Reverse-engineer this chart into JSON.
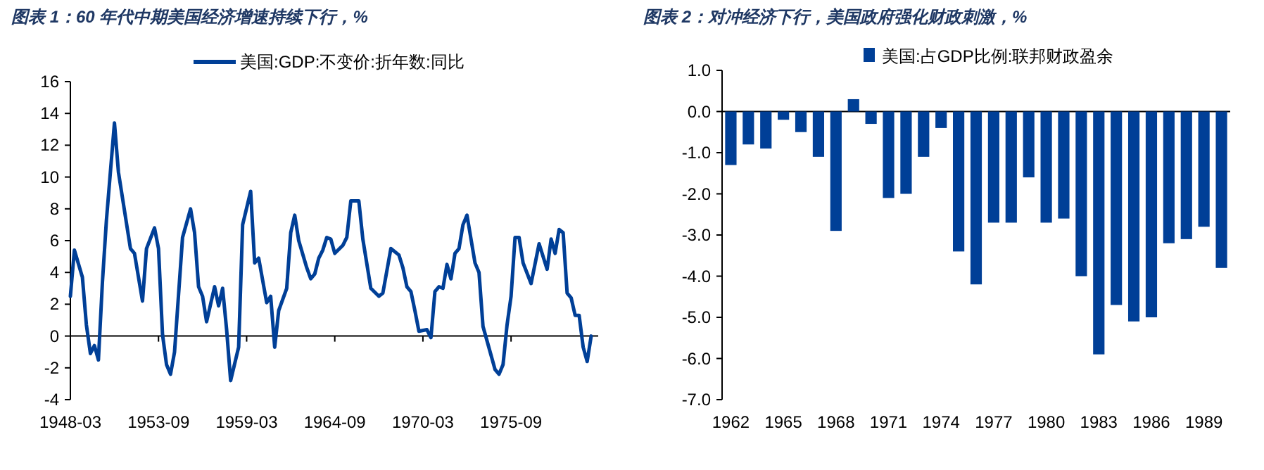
{
  "chart_data": [
    {
      "type": "line",
      "title": "图表 1：60 年代中期美国经济增速持续下行，%",
      "legend": "top",
      "grid": false,
      "ref_lines": [
        {
          "axis": "y",
          "value": 0,
          "color": "#000000"
        }
      ],
      "marker": "none",
      "line_style": "solid",
      "ylim": [
        -4,
        16
      ],
      "yticks": [
        -4,
        -2,
        0,
        2,
        4,
        6,
        8,
        10,
        12,
        14,
        16
      ],
      "xlim": [
        "1948-03",
        "1980-09"
      ],
      "xticks": [
        "1948-03",
        "1953-09",
        "1959-03",
        "1964-09",
        "1970-03",
        "1975-09"
      ],
      "x": [
        "1948-03",
        "1948-06",
        "1948-12",
        "1949-03",
        "1949-06",
        "1949-09",
        "1949-12",
        "1950-03",
        "1950-06",
        "1950-12",
        "1951-03",
        "1951-12",
        "1952-03",
        "1952-09",
        "1952-12",
        "1953-06",
        "1953-09",
        "1953-12",
        "1954-03",
        "1954-06",
        "1954-09",
        "1955-03",
        "1955-09",
        "1955-12",
        "1956-03",
        "1956-06",
        "1956-09",
        "1957-03",
        "1957-06",
        "1957-09",
        "1957-12",
        "1958-03",
        "1958-09",
        "1958-12",
        "1959-06",
        "1959-09",
        "1959-12",
        "1960-06",
        "1960-09",
        "1960-12",
        "1961-03",
        "1961-09",
        "1961-12",
        "1962-03",
        "1962-06",
        "1962-12",
        "1963-03",
        "1963-06",
        "1963-09",
        "1963-12",
        "1964-03",
        "1964-06",
        "1964-09",
        "1965-03",
        "1965-06",
        "1965-09",
        "1966-03",
        "1966-06",
        "1966-12",
        "1967-06",
        "1967-09",
        "1968-03",
        "1968-09",
        "1968-12",
        "1969-03",
        "1969-06",
        "1969-09",
        "1969-12",
        "1970-06",
        "1970-09",
        "1970-12",
        "1971-03",
        "1971-06",
        "1971-09",
        "1971-12",
        "1972-03",
        "1972-06",
        "1972-09",
        "1972-12",
        "1973-06",
        "1973-09",
        "1973-12",
        "1974-06",
        "1974-09",
        "1974-12",
        "1975-03",
        "1975-06",
        "1975-09",
        "1975-12",
        "1976-03",
        "1976-06",
        "1976-12",
        "1977-06",
        "1977-12",
        "1978-03",
        "1978-06",
        "1978-09",
        "1978-12",
        "1979-03",
        "1979-06",
        "1979-09",
        "1979-12",
        "1980-03",
        "1980-06",
        "1980-09"
      ],
      "series": [
        {
          "name": "美国:GDP:不变价:折年数:同比",
          "color": "#003f97",
          "values": [
            2.5,
            5.4,
            3.7,
            0.7,
            -1.1,
            -0.6,
            -1.5,
            3.4,
            7.3,
            13.4,
            10.3,
            5.5,
            5.2,
            2.2,
            5.5,
            6.8,
            5.5,
            0.1,
            -1.8,
            -2.4,
            -1.0,
            6.2,
            8.0,
            6.5,
            3.1,
            2.5,
            0.9,
            3.1,
            1.9,
            3.0,
            0.4,
            -2.8,
            -0.7,
            7.0,
            9.1,
            4.6,
            4.9,
            2.1,
            2.5,
            -0.7,
            1.6,
            3.0,
            6.5,
            7.6,
            6.0,
            4.3,
            3.6,
            3.9,
            4.9,
            5.4,
            6.2,
            6.1,
            5.2,
            5.7,
            6.2,
            8.5,
            8.5,
            6.1,
            3.0,
            2.5,
            2.7,
            5.5,
            5.1,
            4.3,
            3.1,
            2.8,
            1.6,
            0.3,
            0.4,
            -0.1,
            2.8,
            3.1,
            3.0,
            4.5,
            3.6,
            5.2,
            5.5,
            7.0,
            7.6,
            4.6,
            4.0,
            0.6,
            -1.2,
            -2.1,
            -2.4,
            -1.8,
            0.7,
            2.5,
            6.2,
            6.2,
            4.6,
            3.3,
            5.8,
            4.2,
            6.1,
            5.2,
            6.7,
            6.5,
            2.7,
            2.4,
            1.3,
            1.3,
            -0.7,
            -1.6,
            0.0
          ]
        }
      ]
    },
    {
      "type": "bar",
      "title": "图表 2：对冲经济下行，美国政府强化财政刺激，%",
      "legend": "top",
      "grid": false,
      "ref_lines": [
        {
          "axis": "y",
          "value": 0,
          "color": "#000000"
        }
      ],
      "ylim": [
        -7,
        1
      ],
      "yticks": [
        {
          "value": -7,
          "label": "-7.0"
        },
        {
          "value": -6,
          "label": "-6.0"
        },
        {
          "value": -5,
          "label": "-5.0"
        },
        {
          "value": -4,
          "label": "-4.0"
        },
        {
          "value": -3,
          "label": "-3.0"
        },
        {
          "value": -2,
          "label": "-2.0"
        },
        {
          "value": -1,
          "label": "-1.0"
        },
        {
          "value": 0,
          "label": "0.0"
        },
        {
          "value": 1,
          "label": "1.0"
        }
      ],
      "categories": [
        "1962",
        null,
        null,
        "1965",
        null,
        null,
        "1968",
        null,
        null,
        "1971",
        null,
        null,
        "1974",
        null,
        null,
        "1977",
        null,
        null,
        "1980",
        null,
        null,
        "1983",
        null,
        null,
        "1986",
        null,
        null,
        "1989",
        null
      ],
      "series": [
        {
          "name": "美国:占GDP比例:联邦财政盈余",
          "color": "#003f97",
          "values": [
            -1.3,
            -0.8,
            -0.9,
            -0.2,
            -0.5,
            -1.1,
            -2.9,
            0.3,
            -0.3,
            -2.1,
            -2.0,
            -1.1,
            -0.4,
            -3.4,
            -4.2,
            -2.7,
            -2.7,
            -1.6,
            -2.7,
            -2.6,
            -4.0,
            -5.9,
            -4.7,
            -5.1,
            -5.0,
            -3.2,
            -3.1,
            -2.8,
            -3.8
          ]
        }
      ]
    }
  ]
}
